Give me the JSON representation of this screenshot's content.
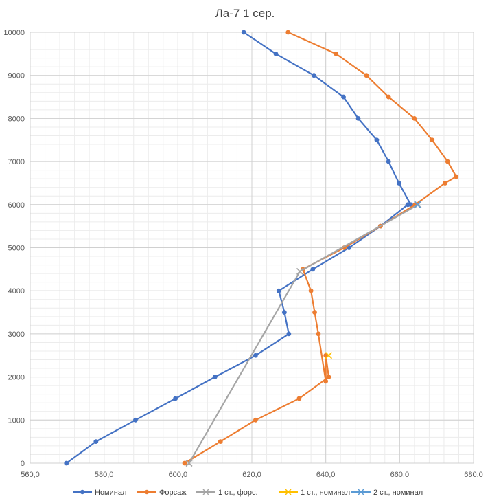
{
  "chart_data": {
    "type": "line",
    "title": "Ла-7 1 сер.",
    "xlabel": "",
    "ylabel": "",
    "xlim": [
      560,
      680
    ],
    "ylim": [
      0,
      10000
    ],
    "x_ticks": [
      560,
      580,
      600,
      620,
      640,
      660,
      680
    ],
    "x_tick_labels": [
      "560,0",
      "580,0",
      "600,0",
      "620,0",
      "640,0",
      "660,0",
      "680,0"
    ],
    "y_ticks": [
      0,
      1000,
      2000,
      3000,
      4000,
      5000,
      6000,
      7000,
      8000,
      9000,
      10000
    ],
    "y_tick_labels": [
      "0",
      "1000",
      "2000",
      "3000",
      "4000",
      "5000",
      "6000",
      "7000",
      "8000",
      "9000",
      "10000"
    ],
    "grid": true,
    "legend_position": "bottom",
    "series": [
      {
        "name": "Номинал",
        "color": "#4472c4",
        "marker": "circle",
        "points": [
          [
            569.8,
            0
          ],
          [
            577.8,
            500
          ],
          [
            588.5,
            1000
          ],
          [
            599.3,
            1500
          ],
          [
            610.0,
            2000
          ],
          [
            621.0,
            2500
          ],
          [
            630.0,
            3000
          ],
          [
            628.8,
            3500
          ],
          [
            627.3,
            4000
          ],
          [
            636.5,
            4500
          ],
          [
            646.3,
            5000
          ],
          [
            654.8,
            5500
          ],
          [
            662.2,
            6000
          ],
          [
            663.0,
            6000
          ],
          [
            659.8,
            6500
          ],
          [
            657.0,
            7000
          ],
          [
            653.8,
            7500
          ],
          [
            648.8,
            8000
          ],
          [
            644.8,
            8500
          ],
          [
            636.8,
            9000
          ],
          [
            626.5,
            9500
          ],
          [
            617.8,
            10000
          ]
        ]
      },
      {
        "name": "Форсаж",
        "color": "#ed7d31",
        "marker": "circle",
        "points": [
          [
            601.8,
            0
          ],
          [
            611.5,
            500
          ],
          [
            621.0,
            1000
          ],
          [
            632.8,
            1500
          ],
          [
            640.8,
            2000
          ],
          [
            640.0,
            2500
          ],
          [
            640.0,
            1900
          ],
          [
            638.0,
            3000
          ],
          [
            637.0,
            3500
          ],
          [
            636.0,
            4000
          ],
          [
            633.8,
            4500
          ],
          [
            645.0,
            5000
          ],
          [
            654.8,
            5500
          ],
          [
            664.2,
            6000
          ],
          [
            672.3,
            6500
          ],
          [
            675.3,
            6650
          ],
          [
            673.0,
            7000
          ],
          [
            668.8,
            7500
          ],
          [
            664.0,
            8000
          ],
          [
            657.0,
            8500
          ],
          [
            651.0,
            9000
          ],
          [
            642.8,
            9500
          ],
          [
            629.8,
            10000
          ]
        ]
      },
      {
        "name": "1 ст., форс.",
        "color": "#a5a5a5",
        "marker": "x",
        "points": [
          [
            603.0,
            0
          ],
          [
            633.0,
            4450
          ],
          [
            665.0,
            6000
          ]
        ]
      },
      {
        "name": "1 ст., номинал",
        "color": "#ffc000",
        "marker": "x",
        "points": [
          [
            640.8,
            2500
          ]
        ]
      },
      {
        "name": "2 ст., номинал",
        "color": "#5b9bd5",
        "marker": "x",
        "points": [
          [
            664.8,
            6000
          ]
        ]
      }
    ]
  }
}
